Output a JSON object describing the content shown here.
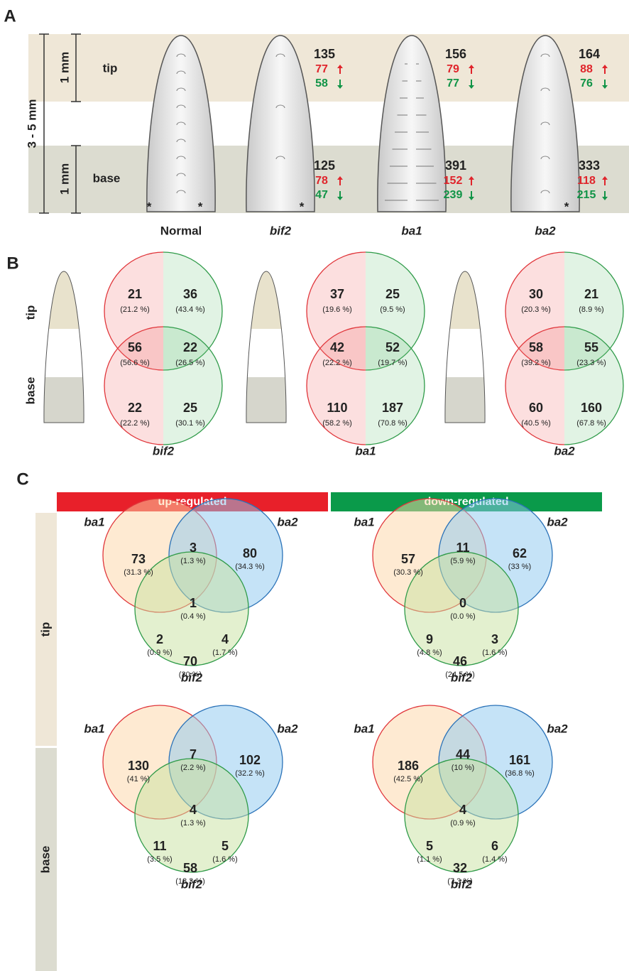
{
  "panel_a": {
    "label": "A",
    "scale": "3 - 5 mm",
    "tip_scale": "1 mm",
    "base_scale": "1 mm",
    "tip": "tip",
    "base": "base",
    "samples": [
      {
        "name": "Normal",
        "markers": [
          "*",
          "*"
        ]
      },
      {
        "name": "bif2",
        "markers": [
          "*"
        ],
        "tip": {
          "total": 135,
          "up": 77,
          "down": 58
        },
        "base": {
          "total": 125,
          "up": 78,
          "down": 47
        }
      },
      {
        "name": "ba1",
        "markers": [],
        "tip": {
          "total": 156,
          "up": 79,
          "down": 77
        },
        "base": {
          "total": 391,
          "up": 152,
          "down": 239
        }
      },
      {
        "name": "ba2",
        "markers": [
          "*"
        ],
        "tip": {
          "total": 164,
          "up": 88,
          "down": 76
        },
        "base": {
          "total": 333,
          "up": 118,
          "down": 215
        }
      }
    ]
  },
  "panel_b": {
    "label": "B",
    "tip": "tip",
    "base": "base",
    "groups": [
      {
        "name": "bif2",
        "cells": [
          {
            "count": 21,
            "percent": "(21.2 %)"
          },
          {
            "count": 36,
            "percent": "(43.4 %)"
          },
          {
            "count": 56,
            "percent": "(56.6 %)"
          },
          {
            "count": 22,
            "percent": "(26.5 %)"
          },
          {
            "count": 22,
            "percent": "(22.2 %)"
          },
          {
            "count": 25,
            "percent": "(30.1 %)"
          }
        ]
      },
      {
        "name": "ba1",
        "cells": [
          {
            "count": 37,
            "percent": "(19.6 %)"
          },
          {
            "count": 25,
            "percent": "(9.5 %)"
          },
          {
            "count": 42,
            "percent": "(22.2 %)"
          },
          {
            "count": 52,
            "percent": "(19.7 %)"
          },
          {
            "count": 110,
            "percent": "(58.2 %)"
          },
          {
            "count": 187,
            "percent": "(70.8 %)"
          }
        ]
      },
      {
        "name": "ba2",
        "cells": [
          {
            "count": 30,
            "percent": "(20.3 %)"
          },
          {
            "count": 21,
            "percent": "(8.9 %)"
          },
          {
            "count": 58,
            "percent": "(39.2 %)"
          },
          {
            "count": 55,
            "percent": "(23.3 %)"
          },
          {
            "count": 60,
            "percent": "(40.5 %)"
          },
          {
            "count": 160,
            "percent": "(67.8 %)"
          }
        ]
      }
    ]
  },
  "panel_c": {
    "label": "C",
    "columns": [
      "up-regulated",
      "down-regulated"
    ],
    "rows": [
      "tip",
      "base"
    ],
    "venns": [
      {
        "sets": [
          "ba1",
          "ba2",
          "bif2"
        ],
        "regions": [
          {
            "count": 73,
            "percent": "(31.3 %)"
          },
          {
            "count": 3,
            "percent": "(1.3 %)"
          },
          {
            "count": 80,
            "percent": "(34.3 %)"
          },
          {
            "count": 1,
            "percent": "(0.4 %)"
          },
          {
            "count": 2,
            "percent": "(0.9 %)"
          },
          {
            "count": 4,
            "percent": "(1.7 %)"
          },
          {
            "count": 70,
            "percent": "(30 %)"
          }
        ]
      },
      {
        "sets": [
          "ba1",
          "ba2",
          "bif2"
        ],
        "regions": [
          {
            "count": 57,
            "percent": "(30.3 %)"
          },
          {
            "count": 11,
            "percent": "(5.9 %)"
          },
          {
            "count": 62,
            "percent": "(33 %)"
          },
          {
            "count": 0,
            "percent": "(0.0 %)"
          },
          {
            "count": 9,
            "percent": "(4.8 %)"
          },
          {
            "count": 3,
            "percent": "(1.6 %)"
          },
          {
            "count": 46,
            "percent": "(24.5 %)"
          }
        ]
      },
      {
        "sets": [
          "ba1",
          "ba2",
          "bif2"
        ],
        "regions": [
          {
            "count": 130,
            "percent": "(41 %)"
          },
          {
            "count": 7,
            "percent": "(2.2 %)"
          },
          {
            "count": 102,
            "percent": "(32.2 %)"
          },
          {
            "count": 4,
            "percent": "(1.3 %)"
          },
          {
            "count": 11,
            "percent": "(3.5 %)"
          },
          {
            "count": 5,
            "percent": "(1.6 %)"
          },
          {
            "count": 58,
            "percent": "(18.3 %)"
          }
        ]
      },
      {
        "sets": [
          "ba1",
          "ba2",
          "bif2"
        ],
        "regions": [
          {
            "count": 186,
            "percent": "(42.5 %)"
          },
          {
            "count": 44,
            "percent": "(10 %)"
          },
          {
            "count": 161,
            "percent": "(36.8 %)"
          },
          {
            "count": 4,
            "percent": "(0.9 %)"
          },
          {
            "count": 5,
            "percent": "(1.1 %)"
          },
          {
            "count": 6,
            "percent": "(1.4 %)"
          },
          {
            "count": 32,
            "percent": "(7.3 %)"
          }
        ]
      }
    ]
  }
}
